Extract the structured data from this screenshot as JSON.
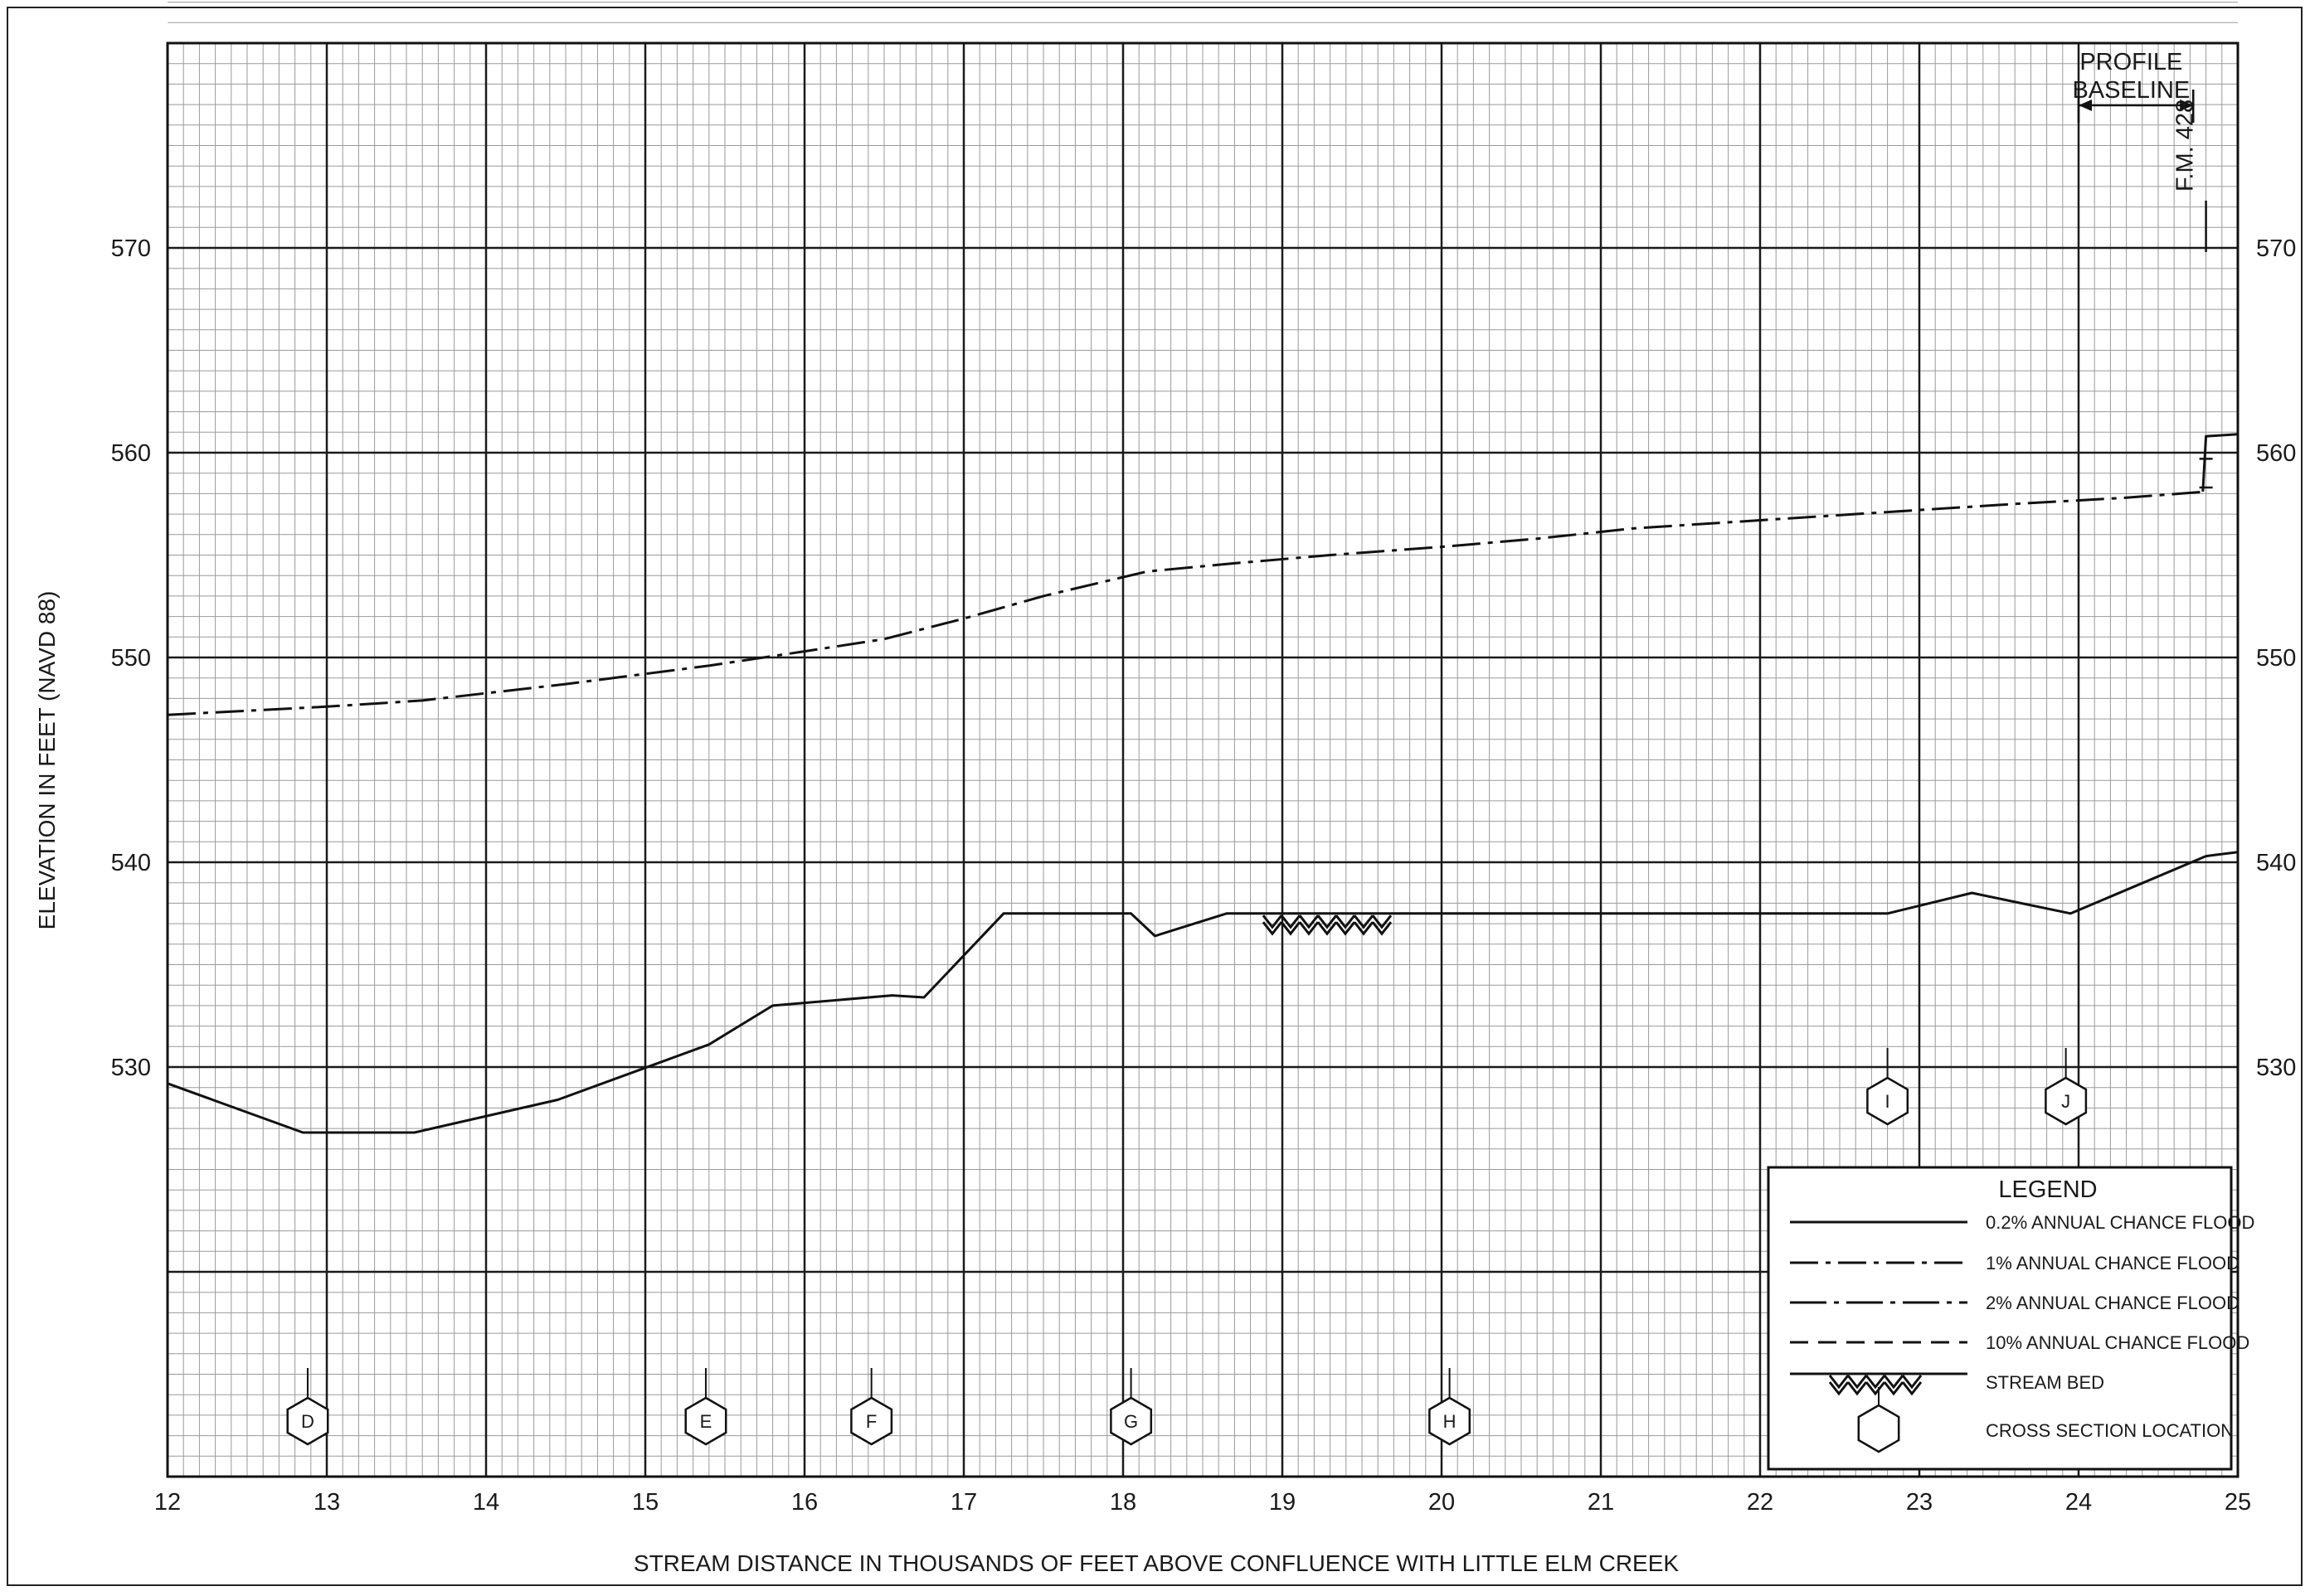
{
  "chart_data": {
    "type": "line",
    "title": "",
    "xlabel": "STREAM DISTANCE IN THOUSANDS OF FEET ABOVE CONFLUENCE WITH LITTLE ELM CREEK",
    "ylabel": "ELEVATION IN FEET (NAVD 88)",
    "xlim": [
      12,
      25
    ],
    "ylim": [
      510,
      580
    ],
    "x_ticks": [
      "12",
      "13",
      "14",
      "15",
      "16",
      "17",
      "18",
      "19",
      "20",
      "21",
      "22",
      "23",
      "24",
      "25"
    ],
    "y_ticks": [
      "530",
      "540",
      "550",
      "560",
      "570"
    ],
    "grid": true,
    "series": [
      {
        "name": "1% ANNUAL CHANCE FLOOD",
        "style": "dashdot",
        "x": [
          12.0,
          13.0,
          13.6,
          14.5,
          15.4,
          16.0,
          16.5,
          17.0,
          17.5,
          18.15,
          18.7,
          19.3,
          20.0,
          20.6,
          21.2,
          22.0,
          22.8,
          23.6,
          24.3,
          24.8
        ],
        "y": [
          547.2,
          547.6,
          547.9,
          548.7,
          549.6,
          550.3,
          550.9,
          551.9,
          553.0,
          554.2,
          554.6,
          555.0,
          555.4,
          555.8,
          556.3,
          556.7,
          557.1,
          557.5,
          557.8,
          558.1
        ]
      },
      {
        "name": "0.2% ANNUAL CHANCE FLOOD",
        "style": "solid",
        "x": [
          24.78,
          24.8,
          25.0
        ],
        "y": [
          558.1,
          560.8,
          560.9
        ]
      },
      {
        "name": "STREAM BED",
        "style": "solid",
        "x": [
          12.0,
          12.85,
          13.55,
          14.45,
          15.4,
          15.8,
          16.55,
          16.75,
          17.25,
          18.05,
          18.2,
          18.65,
          19.3,
          20.0,
          21.0,
          22.0,
          22.8,
          23.33,
          23.95,
          24.8,
          25.0
        ],
        "y": [
          529.2,
          526.8,
          526.8,
          528.4,
          531.1,
          533.0,
          533.5,
          533.4,
          537.5,
          537.5,
          536.4,
          537.5,
          537.5,
          537.5,
          537.5,
          537.5,
          537.5,
          538.5,
          537.5,
          540.3,
          540.5
        ]
      }
    ],
    "cross_sections": [
      {
        "label": "D",
        "x": 12.88
      },
      {
        "label": "E",
        "x": 15.38
      },
      {
        "label": "F",
        "x": 16.42
      },
      {
        "label": "G",
        "x": 18.05
      },
      {
        "label": "H",
        "x": 20.05
      },
      {
        "label": "I",
        "x": 22.8
      },
      {
        "label": "J",
        "x": 23.92
      }
    ],
    "annotations": {
      "profile_baseline": "PROFILE\nBASELINE",
      "bridge": "F.M. 428"
    },
    "legend": {
      "title": "LEGEND",
      "placement": "bottom-right",
      "items": [
        {
          "label": "0.2% ANNUAL CHANCE FLOOD",
          "style": "solid"
        },
        {
          "label": "1% ANNUAL CHANCE FLOOD",
          "style": "dashdot"
        },
        {
          "label": "2% ANNUAL CHANCE FLOOD",
          "style": "longdash-dot"
        },
        {
          "label": "10% ANNUAL CHANCE FLOOD",
          "style": "dashed"
        },
        {
          "label": "STREAM BED",
          "style": "streambed"
        },
        {
          "label": "CROSS SECTION LOCATION",
          "style": "hexagon"
        }
      ]
    }
  }
}
